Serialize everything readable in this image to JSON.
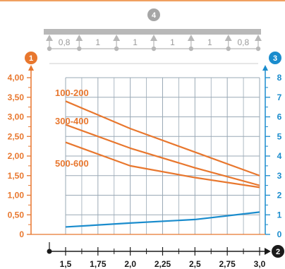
{
  "colors": {
    "orange": "#e8772e",
    "blue": "#1a8ccd",
    "grid": "#9aa9b6",
    "beam": "#b8b8b8",
    "badge_grey": "#a6a6a6",
    "black": "#1a1a1a",
    "top_rule": "#f0a060"
  },
  "badges": {
    "span": "4",
    "left_axis": "1",
    "right_axis": "3",
    "x_axis": "2"
  },
  "span_diagram": {
    "segments": [
      "0,8",
      "1",
      "1",
      "1",
      "1",
      "0,8"
    ]
  },
  "chart_data": {
    "type": "line",
    "x_ticks": [
      "1,5",
      "1,75",
      "2,0",
      "2,25",
      "2,5",
      "2,75",
      "3,0"
    ],
    "x_tick_values": [
      1.5,
      1.75,
      2.0,
      2.25,
      2.5,
      2.75,
      3.0
    ],
    "xlim": [
      1.5,
      3.0
    ],
    "y_left_ticks": [
      "0",
      "0,50",
      "1,00",
      "1,50",
      "2,00",
      "2,50",
      "3,00",
      "3,50",
      "4,00"
    ],
    "y_left_tick_values": [
      0,
      0.5,
      1.0,
      1.5,
      2.0,
      2.5,
      3.0,
      3.5,
      4.0
    ],
    "ylim_left": [
      0,
      4.0
    ],
    "y_right_ticks": [
      "0",
      "1",
      "2",
      "3",
      "4",
      "5",
      "6",
      "7",
      "8"
    ],
    "y_right_tick_values": [
      0,
      1,
      2,
      3,
      4,
      5,
      6,
      7,
      8
    ],
    "ylim_right": [
      0,
      8
    ],
    "grid": true,
    "series": [
      {
        "name": "100-200",
        "axis": "left",
        "color": "#e8772e",
        "x": [
          1.5,
          2.0,
          2.5,
          3.0
        ],
        "y": [
          3.4,
          2.7,
          2.1,
          1.5
        ]
      },
      {
        "name": "300-400",
        "axis": "left",
        "color": "#e8772e",
        "x": [
          1.5,
          2.0,
          2.5,
          3.0
        ],
        "y": [
          2.8,
          2.2,
          1.7,
          1.25
        ]
      },
      {
        "name": "500-600",
        "axis": "left",
        "color": "#e8772e",
        "x": [
          1.5,
          2.0,
          2.5,
          3.0
        ],
        "y": [
          2.35,
          1.75,
          1.45,
          1.2
        ]
      },
      {
        "name": "",
        "axis": "right",
        "color": "#1a8ccd",
        "x": [
          1.5,
          2.0,
          2.5,
          3.0
        ],
        "y": [
          0.38,
          0.58,
          0.76,
          1.14
        ]
      }
    ]
  }
}
